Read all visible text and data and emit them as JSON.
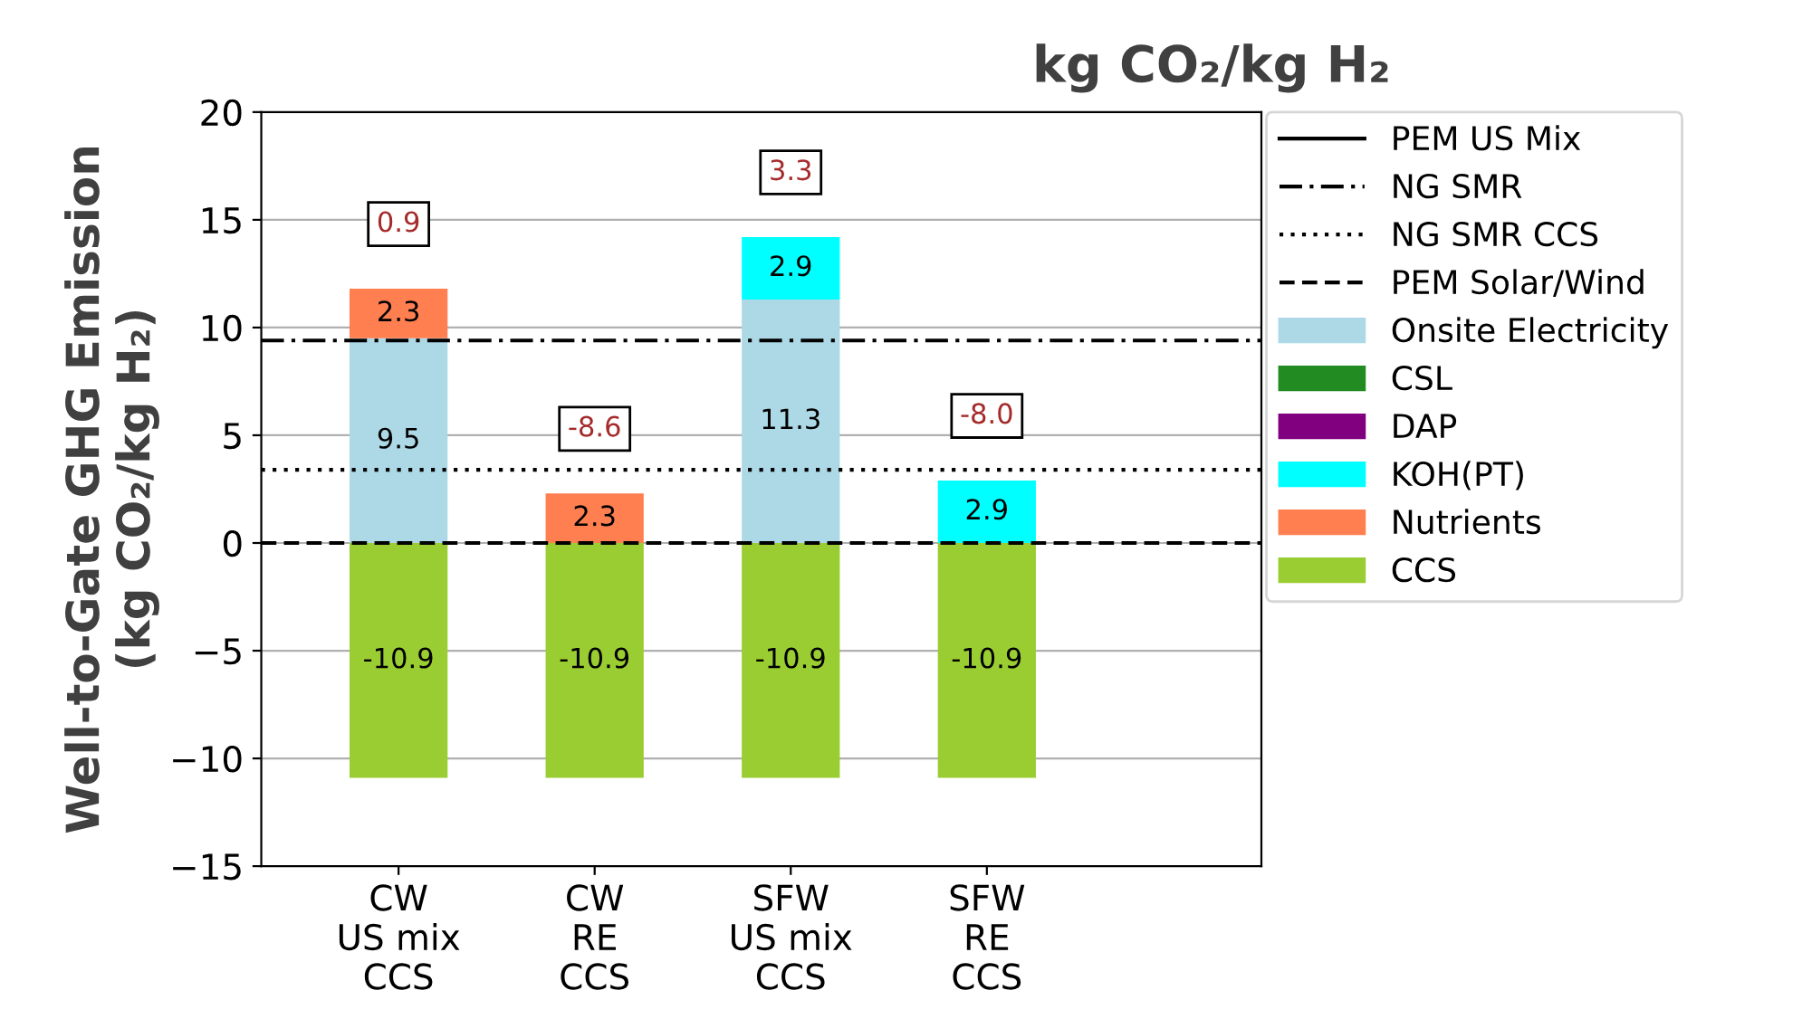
{
  "chart_data": {
    "type": "bar",
    "title": "kg CO₂/kg H₂",
    "ylabel": "Well-to-Gate GHG Emission\n(kg CO₂/kg H₂)",
    "categories": [
      "CW\nUS mix\nCCS",
      "CW\nRE\nCCS",
      "SFW\nUS mix\nCCS",
      "SFW\nRE\nCCS"
    ],
    "stacked": true,
    "series": [
      {
        "name": "PEM US Mix",
        "type": "line",
        "color": "#000000",
        "line_style": "solid",
        "values": [
          null,
          null,
          null,
          null
        ]
      },
      {
        "name": "Onsite Electricity",
        "color": "#add8e6",
        "values": [
          9.5,
          null,
          11.3,
          null
        ]
      },
      {
        "name": "CSL",
        "color": "#228b22",
        "values": [
          null,
          null,
          null,
          null
        ]
      },
      {
        "name": "DAP",
        "color": "#800080",
        "values": [
          null,
          null,
          null,
          null
        ]
      },
      {
        "name": "KOH(PT)",
        "color": "#00ffff",
        "values": [
          null,
          null,
          2.9,
          2.9
        ]
      },
      {
        "name": "Nutrients",
        "color": "#ff7f50",
        "values": [
          2.3,
          2.3,
          null,
          null
        ]
      },
      {
        "name": "CCS",
        "color": "#9acd32",
        "values": [
          -10.9,
          -10.9,
          -10.9,
          -10.9
        ]
      }
    ],
    "ref_lines": [
      {
        "axis": "y",
        "value": 9.4,
        "label": "NG SMR",
        "color": "#000000",
        "line_style": "dashdot"
      },
      {
        "axis": "y",
        "value": 3.4,
        "label": "NG SMR CCS",
        "color": "#000000",
        "line_style": "dotted"
      },
      {
        "axis": "y",
        "value": 0,
        "label": "PEM Solar/Wind",
        "color": "#000000",
        "line_style": "dashed"
      }
    ],
    "totals": [
      "0.9",
      "-8.6",
      "3.3",
      "-8.0"
    ],
    "data_labels": true,
    "ylim": [
      -15,
      20
    ],
    "yticks": [
      {
        "value": -15,
        "label": "−15"
      },
      {
        "value": -10,
        "label": "−10"
      },
      {
        "value": -5,
        "label": "−5"
      },
      0,
      5,
      10,
      15,
      20
    ],
    "grid": "y",
    "legend": "right"
  }
}
